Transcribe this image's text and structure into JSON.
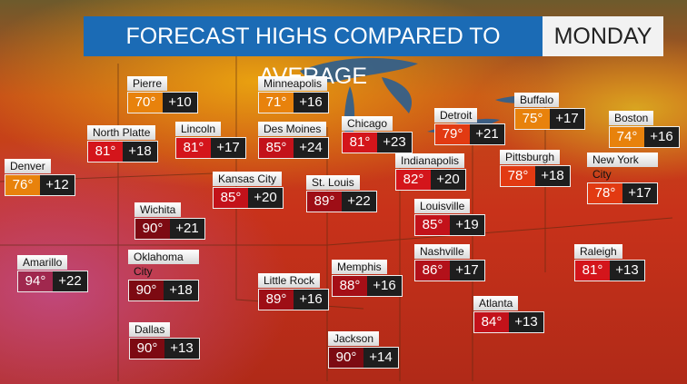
{
  "header": {
    "title": "FORECAST HIGHS COMPARED TO AVERAGE",
    "day": "MONDAY"
  },
  "cities": [
    {
      "name": "Pierre",
      "high": "70°",
      "anomaly": "+10",
      "color": "#e8820c"
    },
    {
      "name": "Minneapolis",
      "high": "71°",
      "anomaly": "+16",
      "color": "#e8820c"
    },
    {
      "name": "North Platte",
      "high": "81°",
      "anomaly": "+18",
      "color": "#d4151b"
    },
    {
      "name": "Lincoln",
      "high": "81°",
      "anomaly": "+17",
      "color": "#d4151b"
    },
    {
      "name": "Des Moines",
      "high": "85°",
      "anomaly": "+24",
      "color": "#c3121a"
    },
    {
      "name": "Chicago",
      "high": "81°",
      "anomaly": "+23",
      "color": "#d4151b"
    },
    {
      "name": "Detroit",
      "high": "79°",
      "anomaly": "+21",
      "color": "#e23a12"
    },
    {
      "name": "Buffalo",
      "high": "75°",
      "anomaly": "+17",
      "color": "#e8820c"
    },
    {
      "name": "Boston",
      "high": "74°",
      "anomaly": "+16",
      "color": "#e8820c"
    },
    {
      "name": "Denver",
      "high": "76°",
      "anomaly": "+12",
      "color": "#e8820c"
    },
    {
      "name": "Kansas City",
      "high": "85°",
      "anomaly": "+20",
      "color": "#c3121a"
    },
    {
      "name": "St. Louis",
      "high": "89°",
      "anomaly": "+22",
      "color": "#9e0e16"
    },
    {
      "name": "Indianapolis",
      "high": "82°",
      "anomaly": "+20",
      "color": "#d4151b"
    },
    {
      "name": "Pittsburgh",
      "high": "78°",
      "anomaly": "+18",
      "color": "#e23a12"
    },
    {
      "name": "New York City",
      "high": "78°",
      "anomaly": "+17",
      "color": "#e23a12"
    },
    {
      "name": "Wichita",
      "high": "90°",
      "anomaly": "+21",
      "color": "#7d0a12"
    },
    {
      "name": "Louisville",
      "high": "85°",
      "anomaly": "+19",
      "color": "#c3121a"
    },
    {
      "name": "Amarillo",
      "high": "94°",
      "anomaly": "+22",
      "color": "#a0284e"
    },
    {
      "name": "Oklahoma City",
      "high": "90°",
      "anomaly": "+18",
      "color": "#7d0a12"
    },
    {
      "name": "Nashville",
      "high": "86°",
      "anomaly": "+17",
      "color": "#b3111a"
    },
    {
      "name": "Raleigh",
      "high": "81°",
      "anomaly": "+13",
      "color": "#d4151b"
    },
    {
      "name": "Memphis",
      "high": "88°",
      "anomaly": "+16",
      "color": "#a50f17"
    },
    {
      "name": "Little Rock",
      "high": "89°",
      "anomaly": "+16",
      "color": "#9e0e16"
    },
    {
      "name": "Atlanta",
      "high": "84°",
      "anomaly": "+13",
      "color": "#c3121a"
    },
    {
      "name": "Dallas",
      "high": "90°",
      "anomaly": "+13",
      "color": "#7d0a12"
    },
    {
      "name": "Jackson",
      "high": "90°",
      "anomaly": "+14",
      "color": "#7d0a12"
    }
  ]
}
